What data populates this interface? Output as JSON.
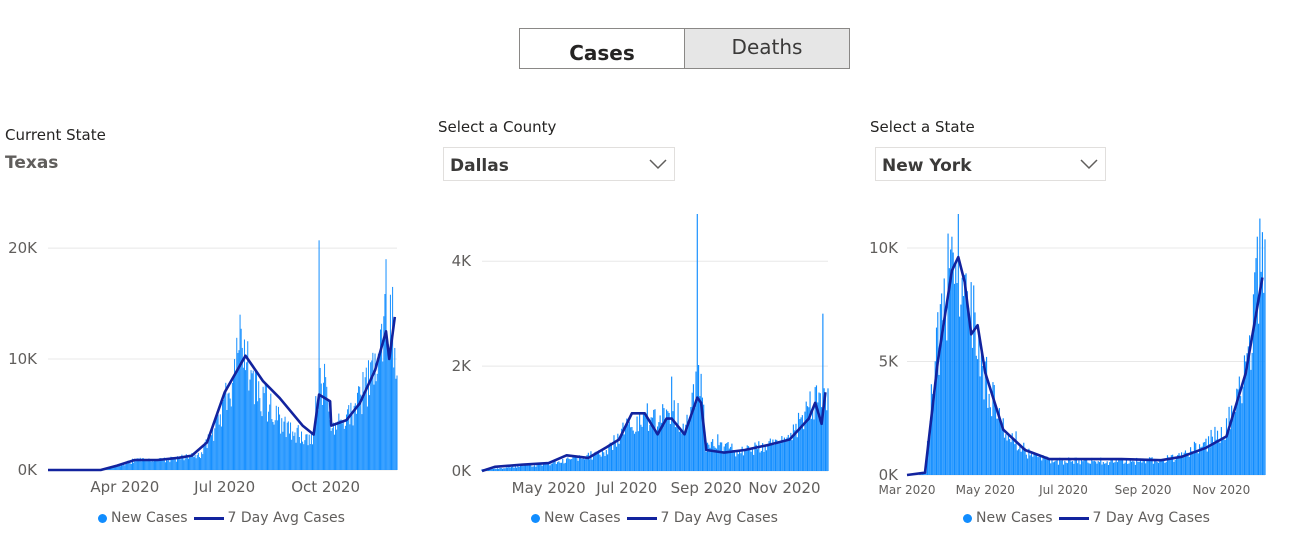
{
  "toggle": {
    "cases_label": "Cases",
    "deaths_label": "Deaths",
    "selected": "Cases"
  },
  "panel1": {
    "title": "Current State",
    "value": "Texas"
  },
  "panel2": {
    "title": "Select a County",
    "value": "Dallas"
  },
  "panel3": {
    "title": "Select a State",
    "value": "New York"
  },
  "legend": {
    "new_cases": "New Cases",
    "avg": "7 Day Avg Cases"
  },
  "colors": {
    "bars": "#118dff",
    "avg_line": "#12239e",
    "grid": "#e8e8e8"
  },
  "chart_data": [
    {
      "type": "bar",
      "overlay": "line",
      "xlim": [
        "2020-01-22",
        "2020-12-05"
      ],
      "ylim": [
        0,
        21000
      ],
      "yticks": [
        0,
        10000,
        20000
      ],
      "ytick_labels": [
        "0K",
        "10K",
        "20K"
      ],
      "xtick_labels": [
        {
          "date": "2020-04-01",
          "label": "Apr 2020"
        },
        {
          "date": "2020-07-01",
          "label": "Jul 2020"
        },
        {
          "date": "2020-10-01",
          "label": "Oct 2020"
        }
      ],
      "series": [
        {
          "name": "New Cases",
          "kind": "bar",
          "points": [
            [
              "2020-03-10",
              0
            ],
            [
              "2020-03-25",
              400
            ],
            [
              "2020-04-10",
              1000
            ],
            [
              "2020-05-01",
              1000
            ],
            [
              "2020-05-20",
              1200
            ],
            [
              "2020-06-10",
              1600
            ],
            [
              "2020-06-25",
              5000
            ],
            [
              "2020-07-10",
              10000
            ],
            [
              "2020-07-15",
              14000
            ],
            [
              "2020-07-25",
              9000
            ],
            [
              "2020-08-05",
              7500
            ],
            [
              "2020-08-20",
              5000
            ],
            [
              "2020-09-05",
              3800
            ],
            [
              "2020-09-20",
              3200
            ],
            [
              "2020-09-25",
              20700
            ],
            [
              "2020-10-05",
              4500
            ],
            [
              "2020-10-20",
              5000
            ],
            [
              "2020-11-01",
              7500
            ],
            [
              "2020-11-15",
              10500
            ],
            [
              "2020-11-25",
              19000
            ],
            [
              "2020-12-01",
              16500
            ],
            [
              "2020-12-03",
              11000
            ]
          ]
        },
        {
          "name": "7 Day Avg Cases",
          "kind": "line",
          "points": [
            [
              "2020-01-22",
              0
            ],
            [
              "2020-03-10",
              0
            ],
            [
              "2020-03-25",
              400
            ],
            [
              "2020-04-10",
              900
            ],
            [
              "2020-05-01",
              900
            ],
            [
              "2020-05-20",
              1100
            ],
            [
              "2020-06-01",
              1300
            ],
            [
              "2020-06-15",
              2500
            ],
            [
              "2020-07-01",
              7000
            ],
            [
              "2020-07-20",
              10300
            ],
            [
              "2020-08-05",
              8000
            ],
            [
              "2020-08-20",
              6500
            ],
            [
              "2020-09-10",
              4000
            ],
            [
              "2020-09-20",
              3200
            ],
            [
              "2020-09-25",
              6800
            ],
            [
              "2020-10-05",
              6200
            ],
            [
              "2020-10-06",
              4000
            ],
            [
              "2020-10-20",
              4500
            ],
            [
              "2020-11-01",
              6000
            ],
            [
              "2020-11-15",
              9000
            ],
            [
              "2020-11-25",
              12500
            ],
            [
              "2020-11-28",
              10000
            ],
            [
              "2020-12-03",
              13800
            ]
          ]
        }
      ]
    },
    {
      "type": "bar",
      "overlay": "line",
      "xlim": [
        "2020-03-10",
        "2020-12-05"
      ],
      "ylim": [
        0,
        4900
      ],
      "yticks": [
        0,
        2000,
        4000
      ],
      "ytick_labels": [
        "0K",
        "2K",
        "4K"
      ],
      "xtick_labels": [
        {
          "date": "2020-05-01",
          "label": "May 2020"
        },
        {
          "date": "2020-07-01",
          "label": "Jul 2020"
        },
        {
          "date": "2020-09-01",
          "label": "Sep 2020"
        },
        {
          "date": "2020-11-01",
          "label": "Nov 2020"
        }
      ],
      "series": [
        {
          "name": "New Cases",
          "kind": "bar",
          "points": [
            [
              "2020-03-20",
              50
            ],
            [
              "2020-04-10",
              100
            ],
            [
              "2020-05-01",
              150
            ],
            [
              "2020-05-25",
              300
            ],
            [
              "2020-06-15",
              400
            ],
            [
              "2020-07-01",
              1000
            ],
            [
              "2020-07-15",
              1100
            ],
            [
              "2020-08-05",
              1800
            ],
            [
              "2020-08-15",
              700
            ],
            [
              "2020-08-25",
              4900
            ],
            [
              "2020-09-10",
              700
            ],
            [
              "2020-09-25",
              400
            ],
            [
              "2020-10-10",
              500
            ],
            [
              "2020-10-25",
              600
            ],
            [
              "2020-11-10",
              900
            ],
            [
              "2020-11-25",
              1600
            ],
            [
              "2020-12-01",
              3000
            ],
            [
              "2020-12-03",
              1500
            ]
          ]
        },
        {
          "name": "7 Day Avg Cases",
          "kind": "line",
          "points": [
            [
              "2020-03-10",
              0
            ],
            [
              "2020-03-20",
              80
            ],
            [
              "2020-04-10",
              120
            ],
            [
              "2020-05-01",
              150
            ],
            [
              "2020-05-15",
              300
            ],
            [
              "2020-06-01",
              250
            ],
            [
              "2020-06-15",
              450
            ],
            [
              "2020-06-25",
              600
            ],
            [
              "2020-07-05",
              1100
            ],
            [
              "2020-07-15",
              1100
            ],
            [
              "2020-07-25",
              700
            ],
            [
              "2020-08-01",
              1000
            ],
            [
              "2020-08-05",
              1000
            ],
            [
              "2020-08-15",
              700
            ],
            [
              "2020-08-25",
              1400
            ],
            [
              "2020-08-28",
              1300
            ],
            [
              "2020-09-01",
              400
            ],
            [
              "2020-09-15",
              350
            ],
            [
              "2020-10-01",
              400
            ],
            [
              "2020-10-20",
              500
            ],
            [
              "2020-11-05",
              600
            ],
            [
              "2020-11-20",
              1000
            ],
            [
              "2020-11-25",
              1300
            ],
            [
              "2020-11-30",
              900
            ],
            [
              "2020-12-03",
              1500
            ]
          ]
        }
      ]
    },
    {
      "type": "bar",
      "overlay": "line",
      "xlim": [
        "2020-03-01",
        "2020-12-05"
      ],
      "ylim": [
        0,
        11500
      ],
      "yticks": [
        0,
        5000,
        10000
      ],
      "ytick_labels": [
        "0K",
        "5K",
        "10K"
      ],
      "xtick_labels": [
        {
          "date": "2020-03-01",
          "label": "Mar 2020"
        },
        {
          "date": "2020-05-01",
          "label": "May 2020"
        },
        {
          "date": "2020-07-01",
          "label": "Jul 2020"
        },
        {
          "date": "2020-09-01",
          "label": "Sep 2020"
        },
        {
          "date": "2020-11-01",
          "label": "Nov 2020"
        }
      ],
      "series": [
        {
          "name": "New Cases",
          "kind": "bar",
          "points": [
            [
              "2020-03-10",
              0
            ],
            [
              "2020-03-20",
              4000
            ],
            [
              "2020-03-28",
              8000
            ],
            [
              "2020-04-05",
              10500
            ],
            [
              "2020-04-10",
              11500
            ],
            [
              "2020-04-20",
              8500
            ],
            [
              "2020-05-01",
              5000
            ],
            [
              "2020-05-15",
              2500
            ],
            [
              "2020-06-01",
              1200
            ],
            [
              "2020-06-20",
              700
            ],
            [
              "2020-07-15",
              700
            ],
            [
              "2020-08-15",
              700
            ],
            [
              "2020-09-15",
              700
            ],
            [
              "2020-10-01",
              1000
            ],
            [
              "2020-10-20",
              1600
            ],
            [
              "2020-11-05",
              2500
            ],
            [
              "2020-11-20",
              5000
            ],
            [
              "2020-12-01",
              11300
            ],
            [
              "2020-12-03",
              10700
            ]
          ]
        },
        {
          "name": "7 Day Avg Cases",
          "kind": "line",
          "points": [
            [
              "2020-03-01",
              0
            ],
            [
              "2020-03-15",
              100
            ],
            [
              "2020-03-25",
              5000
            ],
            [
              "2020-04-05",
              9000
            ],
            [
              "2020-04-10",
              9600
            ],
            [
              "2020-04-15",
              8500
            ],
            [
              "2020-04-20",
              6200
            ],
            [
              "2020-04-25",
              6600
            ],
            [
              "2020-05-01",
              4500
            ],
            [
              "2020-05-15",
              2000
            ],
            [
              "2020-06-01",
              1100
            ],
            [
              "2020-06-20",
              700
            ],
            [
              "2020-07-15",
              700
            ],
            [
              "2020-08-15",
              700
            ],
            [
              "2020-09-15",
              650
            ],
            [
              "2020-10-01",
              800
            ],
            [
              "2020-10-20",
              1200
            ],
            [
              "2020-11-05",
              1700
            ],
            [
              "2020-11-20",
              4500
            ],
            [
              "2020-12-03",
              8700
            ]
          ]
        }
      ]
    }
  ]
}
